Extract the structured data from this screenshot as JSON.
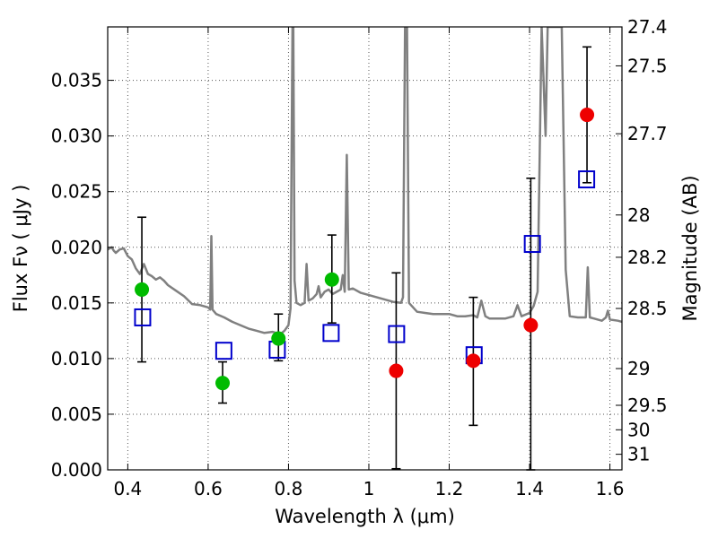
{
  "chart_data": {
    "type": "scatter",
    "xlabel": "Wavelength  λ (μm)",
    "ylabel": "Flux  Fν  ( μJy )",
    "ylabel_right": "Magnitude (AB)",
    "xlim": [
      0.35,
      1.63
    ],
    "ylim": [
      0.0,
      0.0398
    ],
    "grid": true,
    "x_ticks": [
      {
        "v": 0.4,
        "label": "0.4"
      },
      {
        "v": 0.6,
        "label": "0.6"
      },
      {
        "v": 0.8,
        "label": "0.8"
      },
      {
        "v": 1.0,
        "label": "1"
      },
      {
        "v": 1.2,
        "label": "1.2"
      },
      {
        "v": 1.4,
        "label": "1.4"
      },
      {
        "v": 1.6,
        "label": "1.6"
      }
    ],
    "y_ticks": [
      {
        "v": 0.0,
        "label": "0.000"
      },
      {
        "v": 0.005,
        "label": "0.005"
      },
      {
        "v": 0.01,
        "label": "0.010"
      },
      {
        "v": 0.015,
        "label": "0.015"
      },
      {
        "v": 0.02,
        "label": "0.020"
      },
      {
        "v": 0.025,
        "label": "0.025"
      },
      {
        "v": 0.03,
        "label": "0.030"
      },
      {
        "v": 0.035,
        "label": "0.035"
      }
    ],
    "right_ticks": [
      {
        "flux": 0.0398,
        "label": "27.4"
      },
      {
        "flux": 0.0363,
        "label": "27.5"
      },
      {
        "flux": 0.0302,
        "label": "27.7"
      },
      {
        "flux": 0.0229,
        "label": "28"
      },
      {
        "flux": 0.0191,
        "label": "28.2"
      },
      {
        "flux": 0.0145,
        "label": "28.5"
      },
      {
        "flux": 0.0091,
        "label": "29"
      },
      {
        "flux": 0.0058,
        "label": "29.5"
      },
      {
        "flux": 0.0036,
        "label": "30"
      },
      {
        "flux": 0.0014,
        "label": "31"
      }
    ],
    "colors": {
      "spectrum": "#808080",
      "green_points": "#00bb00",
      "red_points": "#ee0000",
      "model_squares": "#0000cc",
      "errorbars": "#000000",
      "grid": "#555555"
    },
    "spectrum": [
      [
        0.35,
        0.0198
      ],
      [
        0.36,
        0.02
      ],
      [
        0.365,
        0.0197
      ],
      [
        0.37,
        0.0195
      ],
      [
        0.38,
        0.0198
      ],
      [
        0.39,
        0.0199
      ],
      [
        0.4,
        0.0192
      ],
      [
        0.41,
        0.0189
      ],
      [
        0.42,
        0.0181
      ],
      [
        0.43,
        0.0176
      ],
      [
        0.44,
        0.0185
      ],
      [
        0.45,
        0.0176
      ],
      [
        0.46,
        0.0174
      ],
      [
        0.47,
        0.0171
      ],
      [
        0.48,
        0.0173
      ],
      [
        0.49,
        0.017
      ],
      [
        0.5,
        0.0166
      ],
      [
        0.52,
        0.0161
      ],
      [
        0.54,
        0.0156
      ],
      [
        0.56,
        0.0149
      ],
      [
        0.58,
        0.0148
      ],
      [
        0.6,
        0.0146
      ],
      [
        0.605,
        0.0144
      ],
      [
        0.608,
        0.021
      ],
      [
        0.611,
        0.0144
      ],
      [
        0.62,
        0.014
      ],
      [
        0.64,
        0.0137
      ],
      [
        0.66,
        0.0133
      ],
      [
        0.68,
        0.013
      ],
      [
        0.7,
        0.0127
      ],
      [
        0.72,
        0.0125
      ],
      [
        0.74,
        0.0123
      ],
      [
        0.76,
        0.0124
      ],
      [
        0.78,
        0.0122
      ],
      [
        0.79,
        0.0125
      ],
      [
        0.8,
        0.013
      ],
      [
        0.805,
        0.0145
      ],
      [
        0.81,
        0.0398
      ],
      [
        0.812,
        0.0398
      ],
      [
        0.815,
        0.017
      ],
      [
        0.82,
        0.015
      ],
      [
        0.83,
        0.0148
      ],
      [
        0.84,
        0.015
      ],
      [
        0.845,
        0.0185
      ],
      [
        0.85,
        0.0152
      ],
      [
        0.86,
        0.0154
      ],
      [
        0.87,
        0.0158
      ],
      [
        0.875,
        0.0165
      ],
      [
        0.88,
        0.0155
      ],
      [
        0.89,
        0.016
      ],
      [
        0.9,
        0.0162
      ],
      [
        0.91,
        0.0158
      ],
      [
        0.92,
        0.016
      ],
      [
        0.93,
        0.0162
      ],
      [
        0.935,
        0.0175
      ],
      [
        0.94,
        0.016
      ],
      [
        0.945,
        0.0283
      ],
      [
        0.95,
        0.0162
      ],
      [
        0.96,
        0.0163
      ],
      [
        0.98,
        0.0159
      ],
      [
        1.0,
        0.0157
      ],
      [
        1.02,
        0.0155
      ],
      [
        1.04,
        0.0153
      ],
      [
        1.06,
        0.0151
      ],
      [
        1.08,
        0.015
      ],
      [
        1.085,
        0.0155
      ],
      [
        1.09,
        0.0398
      ],
      [
        1.095,
        0.0398
      ],
      [
        1.1,
        0.015
      ],
      [
        1.12,
        0.0142
      ],
      [
        1.14,
        0.0141
      ],
      [
        1.16,
        0.014
      ],
      [
        1.18,
        0.014
      ],
      [
        1.2,
        0.014
      ],
      [
        1.22,
        0.0138
      ],
      [
        1.24,
        0.0138
      ],
      [
        1.26,
        0.0139
      ],
      [
        1.27,
        0.0137
      ],
      [
        1.28,
        0.0152
      ],
      [
        1.29,
        0.0138
      ],
      [
        1.3,
        0.0136
      ],
      [
        1.32,
        0.0136
      ],
      [
        1.34,
        0.0136
      ],
      [
        1.36,
        0.0138
      ],
      [
        1.37,
        0.0148
      ],
      [
        1.38,
        0.0138
      ],
      [
        1.4,
        0.0141
      ],
      [
        1.41,
        0.0147
      ],
      [
        1.42,
        0.016
      ],
      [
        1.43,
        0.0398
      ],
      [
        1.44,
        0.03
      ],
      [
        1.445,
        0.0398
      ],
      [
        1.46,
        0.0398
      ],
      [
        1.47,
        0.0398
      ],
      [
        1.48,
        0.0398
      ],
      [
        1.49,
        0.018
      ],
      [
        1.5,
        0.0138
      ],
      [
        1.52,
        0.0137
      ],
      [
        1.54,
        0.0137
      ],
      [
        1.545,
        0.0182
      ],
      [
        1.55,
        0.0137
      ],
      [
        1.56,
        0.0136
      ],
      [
        1.58,
        0.0134
      ],
      [
        1.59,
        0.0137
      ],
      [
        1.595,
        0.0143
      ],
      [
        1.6,
        0.0135
      ],
      [
        1.62,
        0.0134
      ],
      [
        1.63,
        0.0133
      ]
    ],
    "observed": [
      {
        "x": 0.435,
        "y": 0.0162,
        "err_lo": 0.0097,
        "err_hi": 0.0227,
        "color": "green"
      },
      {
        "x": 0.636,
        "y": 0.0078,
        "err_lo": 0.006,
        "err_hi": 0.0097,
        "color": "green"
      },
      {
        "x": 0.775,
        "y": 0.0118,
        "err_lo": 0.0098,
        "err_hi": 0.014,
        "color": "green"
      },
      {
        "x": 0.908,
        "y": 0.0171,
        "err_lo": 0.0132,
        "err_hi": 0.0211,
        "color": "green"
      },
      {
        "x": 1.068,
        "y": 0.0089,
        "err_lo": 0.0001,
        "err_hi": 0.0177,
        "color": "red"
      },
      {
        "x": 1.26,
        "y": 0.0098,
        "err_lo": 0.004,
        "err_hi": 0.0155,
        "color": "red"
      },
      {
        "x": 1.403,
        "y": 0.013,
        "err_lo": 0.0,
        "err_hi": 0.0262,
        "color": "red"
      },
      {
        "x": 1.543,
        "y": 0.0319,
        "err_lo": 0.0258,
        "err_hi": 0.038,
        "color": "red"
      }
    ],
    "model": [
      {
        "x": 0.437,
        "y": 0.0137
      },
      {
        "x": 0.639,
        "y": 0.0107
      },
      {
        "x": 0.772,
        "y": 0.0108
      },
      {
        "x": 0.906,
        "y": 0.0123
      },
      {
        "x": 1.069,
        "y": 0.0122
      },
      {
        "x": 1.262,
        "y": 0.0103
      },
      {
        "x": 1.407,
        "y": 0.0203
      },
      {
        "x": 1.542,
        "y": 0.0261
      }
    ]
  }
}
